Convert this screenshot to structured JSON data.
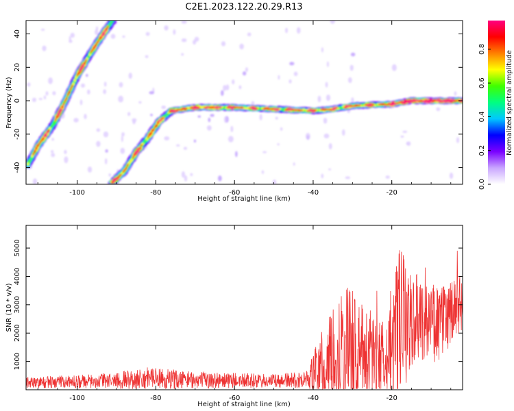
{
  "title": "C2E1.2023.122.20.29.R13",
  "chart_data": [
    {
      "type": "heatmap",
      "xlabel": "Height of straight line (km)",
      "ylabel": "Frequency (Hz)",
      "xlim": [
        -113,
        -2
      ],
      "ylim": [
        -50,
        48
      ],
      "xticks": [
        -100,
        -80,
        -60,
        -40,
        -20
      ],
      "yticks": [
        -40,
        -20,
        0,
        20,
        40
      ],
      "tracks": [
        {
          "name": "",
          "points": [
            [
              -112.5,
              -38
            ],
            [
              -110,
              -27
            ],
            [
              -106,
              -14
            ],
            [
              -103,
              0
            ],
            [
              -100,
              15
            ],
            [
              -97,
              27
            ],
            [
              -94,
              38
            ],
            [
              -91,
              48
            ]
          ]
        },
        {
          "name": "",
          "points": [
            [
              -91,
              -49
            ],
            [
              -88,
              -42
            ],
            [
              -85,
              -31
            ],
            [
              -82,
              -22
            ],
            [
              -79,
              -12
            ],
            [
              -76,
              -6
            ],
            [
              -70,
              -4
            ],
            [
              -60,
              -4
            ],
            [
              -50,
              -5
            ],
            [
              -40,
              -6
            ],
            [
              -35,
              -5
            ],
            [
              -30,
              -3
            ],
            [
              -20,
              -2
            ],
            [
              -15,
              0
            ],
            [
              -2,
              0
            ]
          ]
        }
      ],
      "colorbar": {
        "label": "Normalized spectral amplitude",
        "range": [
          0.0,
          0.97
        ],
        "ticks": [
          "0.0",
          "0.2",
          "0.4",
          "0.6",
          "0.8"
        ],
        "colors": [
          "#ffffff",
          "#c9a6ff",
          "#7a00ff",
          "#0000ff",
          "#00c8ff",
          "#00ff80",
          "#40ff00",
          "#ffff00",
          "#ff8000",
          "#ff0000",
          "#ff0080"
        ]
      }
    },
    {
      "type": "line",
      "xlabel": "Height of straight line (km)",
      "ylabel": "SNR (10 * v/v)",
      "xlim": [
        -113,
        -2
      ],
      "ylim": [
        0,
        5800
      ],
      "xticks": [
        -100,
        -80,
        -60,
        -40,
        -20
      ],
      "yticks": [
        1000,
        2000,
        3000,
        4000,
        5000
      ],
      "color": "#ee3333",
      "envelope": [
        {
          "x": -113,
          "base": 250,
          "amp": 200
        },
        {
          "x": -95,
          "base": 300,
          "amp": 250
        },
        {
          "x": -82,
          "base": 400,
          "amp": 400
        },
        {
          "x": -70,
          "base": 350,
          "amp": 300
        },
        {
          "x": -50,
          "base": 300,
          "amp": 250
        },
        {
          "x": -42,
          "base": 350,
          "amp": 300
        },
        {
          "x": -38,
          "base": 800,
          "amp": 1200
        },
        {
          "x": -35,
          "base": 1200,
          "amp": 1600
        },
        {
          "x": -32,
          "base": 1500,
          "amp": 2500
        },
        {
          "x": -28,
          "base": 1400,
          "amp": 1700
        },
        {
          "x": -22,
          "base": 1200,
          "amp": 1300
        },
        {
          "x": -18,
          "base": 2200,
          "amp": 2800
        },
        {
          "x": -14,
          "base": 2600,
          "amp": 1500
        },
        {
          "x": -8,
          "base": 2300,
          "amp": 1400
        },
        {
          "x": -2,
          "base": 3000,
          "amp": 1100
        }
      ]
    }
  ]
}
